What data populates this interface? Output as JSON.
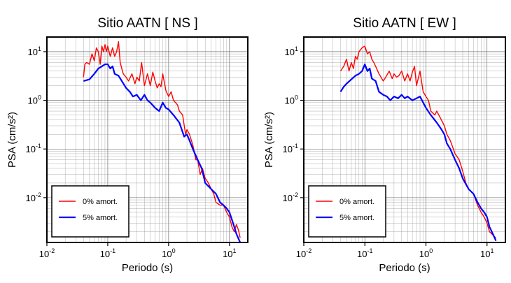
{
  "chart_data": [
    {
      "type": "line",
      "title": "Sitio AATN [ NS ]",
      "xlabel": "Periodo (s)",
      "ylabel": "PSA (cm/s²)",
      "xscale": "log",
      "yscale": "log",
      "xlim": [
        0.01,
        20
      ],
      "ylim": [
        0.0012,
        20
      ],
      "grid": true,
      "legend_position": "bottom-left",
      "x_ticks": [
        {
          "base": "10",
          "exp": "-2",
          "value": 0.01
        },
        {
          "base": "10",
          "exp": "-1",
          "value": 0.1
        },
        {
          "base": "10",
          "exp": "0",
          "value": 1
        },
        {
          "base": "10",
          "exp": "1",
          "value": 10
        }
      ],
      "y_ticks": [
        {
          "base": "10",
          "exp": "-2",
          "value": 0.01
        },
        {
          "base": "10",
          "exp": "-1",
          "value": 0.1
        },
        {
          "base": "10",
          "exp": "0",
          "value": 1
        },
        {
          "base": "10",
          "exp": "1",
          "value": 10
        }
      ],
      "series": [
        {
          "name": "0% amort.",
          "color": "#ff0000",
          "x": [
            0.04,
            0.042,
            0.045,
            0.05,
            0.055,
            0.06,
            0.065,
            0.07,
            0.075,
            0.08,
            0.085,
            0.09,
            0.095,
            0.1,
            0.11,
            0.12,
            0.13,
            0.14,
            0.15,
            0.16,
            0.17,
            0.18,
            0.2,
            0.22,
            0.25,
            0.28,
            0.3,
            0.33,
            0.36,
            0.4,
            0.45,
            0.5,
            0.55,
            0.6,
            0.65,
            0.7,
            0.75,
            0.8,
            0.9,
            1.0,
            1.1,
            1.2,
            1.3,
            1.4,
            1.5,
            1.7,
            1.9,
            2.0,
            2.2,
            2.5,
            2.8,
            3.0,
            3.3,
            3.6,
            4.0,
            4.5,
            5.0,
            5.5,
            6.0,
            7.0,
            8.0,
            9.0,
            10,
            11,
            12,
            13,
            14,
            15
          ],
          "y": [
            3.0,
            5.5,
            6.0,
            5.5,
            9.0,
            6.5,
            12.0,
            10.0,
            5.5,
            13.0,
            10.0,
            14.0,
            10.0,
            13.0,
            8.0,
            12.0,
            8.0,
            10.0,
            16.0,
            6.0,
            4.5,
            3.5,
            3.0,
            2.5,
            3.5,
            2.2,
            3.0,
            2.5,
            6.0,
            2.0,
            3.5,
            2.0,
            3.8,
            2.5,
            1.8,
            2.2,
            1.9,
            3.5,
            1.6,
            1.2,
            1.5,
            1.0,
            0.9,
            0.8,
            0.6,
            0.5,
            0.2,
            0.25,
            0.2,
            0.12,
            0.06,
            0.06,
            0.03,
            0.04,
            0.025,
            0.02,
            0.015,
            0.012,
            0.008,
            0.007,
            0.007,
            0.005,
            0.004,
            0.0025,
            0.002,
            0.0028,
            0.0022,
            0.0015
          ]
        },
        {
          "name": "5% amort.",
          "color": "#0000ff",
          "x": [
            0.04,
            0.045,
            0.05,
            0.06,
            0.07,
            0.08,
            0.09,
            0.1,
            0.11,
            0.12,
            0.13,
            0.15,
            0.17,
            0.2,
            0.23,
            0.26,
            0.3,
            0.35,
            0.4,
            0.45,
            0.5,
            0.6,
            0.7,
            0.8,
            0.9,
            1.0,
            1.2,
            1.5,
            1.8,
            2.0,
            2.2,
            2.5,
            3.0,
            3.5,
            4.0,
            5.0,
            6.0,
            7.0,
            8.0,
            9.0,
            10,
            11,
            12,
            13,
            15
          ],
          "y": [
            2.5,
            2.6,
            2.7,
            3.5,
            4.5,
            5.0,
            5.5,
            5.5,
            4.5,
            5.0,
            3.5,
            3.2,
            2.5,
            1.8,
            1.5,
            1.2,
            1.3,
            1.0,
            1.3,
            1.0,
            0.9,
            0.7,
            0.6,
            0.9,
            0.7,
            0.65,
            0.5,
            0.35,
            0.18,
            0.2,
            0.15,
            0.1,
            0.06,
            0.04,
            0.02,
            0.015,
            0.012,
            0.008,
            0.007,
            0.006,
            0.005,
            0.0035,
            0.0025,
            0.0018,
            0.0012
          ]
        }
      ]
    },
    {
      "type": "line",
      "title": "Sitio AATN [ EW ]",
      "xlabel": "Periodo (s)",
      "ylabel": "PSA (cm/s²)",
      "xscale": "log",
      "yscale": "log",
      "xlim": [
        0.01,
        20
      ],
      "ylim": [
        0.0012,
        20
      ],
      "grid": true,
      "legend_position": "bottom-left",
      "x_ticks": [
        {
          "base": "10",
          "exp": "-2",
          "value": 0.01
        },
        {
          "base": "10",
          "exp": "-1",
          "value": 0.1
        },
        {
          "base": "10",
          "exp": "0",
          "value": 1
        },
        {
          "base": "10",
          "exp": "1",
          "value": 10
        }
      ],
      "y_ticks": [
        {
          "base": "10",
          "exp": "-2",
          "value": 0.01
        },
        {
          "base": "10",
          "exp": "-1",
          "value": 0.1
        },
        {
          "base": "10",
          "exp": "0",
          "value": 1
        },
        {
          "base": "10",
          "exp": "1",
          "value": 10
        }
      ],
      "series": [
        {
          "name": "0% amort.",
          "color": "#ff0000",
          "x": [
            0.04,
            0.045,
            0.05,
            0.055,
            0.06,
            0.065,
            0.07,
            0.075,
            0.08,
            0.09,
            0.1,
            0.11,
            0.12,
            0.13,
            0.14,
            0.15,
            0.17,
            0.2,
            0.22,
            0.25,
            0.28,
            0.3,
            0.33,
            0.36,
            0.4,
            0.45,
            0.5,
            0.55,
            0.6,
            0.65,
            0.7,
            0.8,
            0.9,
            1.0,
            1.1,
            1.2,
            1.4,
            1.5,
            1.7,
            2.0,
            2.2,
            2.5,
            3.0,
            3.5,
            4.0,
            4.5,
            5.0,
            6.0,
            7.0,
            8.0,
            9.0,
            10,
            11,
            12,
            13,
            14
          ],
          "y": [
            4.0,
            5.0,
            7.0,
            4.0,
            6.0,
            4.5,
            8.0,
            7.0,
            10.0,
            12.0,
            13.0,
            9.0,
            10.0,
            7.0,
            6.0,
            5.0,
            3.5,
            2.5,
            3.0,
            4.0,
            2.8,
            3.5,
            3.0,
            3.2,
            4.0,
            2.5,
            3.5,
            2.5,
            3.8,
            5.0,
            2.0,
            4.0,
            1.5,
            1.2,
            1.0,
            0.6,
            0.5,
            0.6,
            0.45,
            0.3,
            0.2,
            0.15,
            0.08,
            0.06,
            0.035,
            0.02,
            0.015,
            0.012,
            0.007,
            0.005,
            0.004,
            0.003,
            0.002,
            0.0018,
            0.0016,
            0.0015
          ]
        },
        {
          "name": "5% amort.",
          "color": "#0000ff",
          "x": [
            0.04,
            0.045,
            0.05,
            0.06,
            0.07,
            0.08,
            0.09,
            0.1,
            0.11,
            0.12,
            0.13,
            0.15,
            0.17,
            0.2,
            0.23,
            0.26,
            0.3,
            0.35,
            0.4,
            0.45,
            0.5,
            0.6,
            0.7,
            0.8,
            0.9,
            1.0,
            1.2,
            1.5,
            1.8,
            2.0,
            2.2,
            2.5,
            3.0,
            3.5,
            4.0,
            5.0,
            6.0,
            7.0,
            8.0,
            9.0,
            10,
            11,
            12,
            13,
            14
          ],
          "y": [
            1.5,
            1.9,
            2.2,
            2.7,
            3.2,
            3.5,
            4.0,
            5.5,
            4.0,
            4.5,
            2.8,
            2.5,
            1.5,
            1.3,
            1.2,
            1.0,
            1.2,
            1.1,
            1.3,
            1.1,
            1.2,
            1.0,
            1.1,
            1.2,
            0.9,
            0.7,
            0.5,
            0.35,
            0.25,
            0.2,
            0.13,
            0.1,
            0.06,
            0.04,
            0.025,
            0.015,
            0.012,
            0.008,
            0.006,
            0.005,
            0.004,
            0.0025,
            0.002,
            0.0016,
            0.0013
          ]
        }
      ]
    }
  ]
}
